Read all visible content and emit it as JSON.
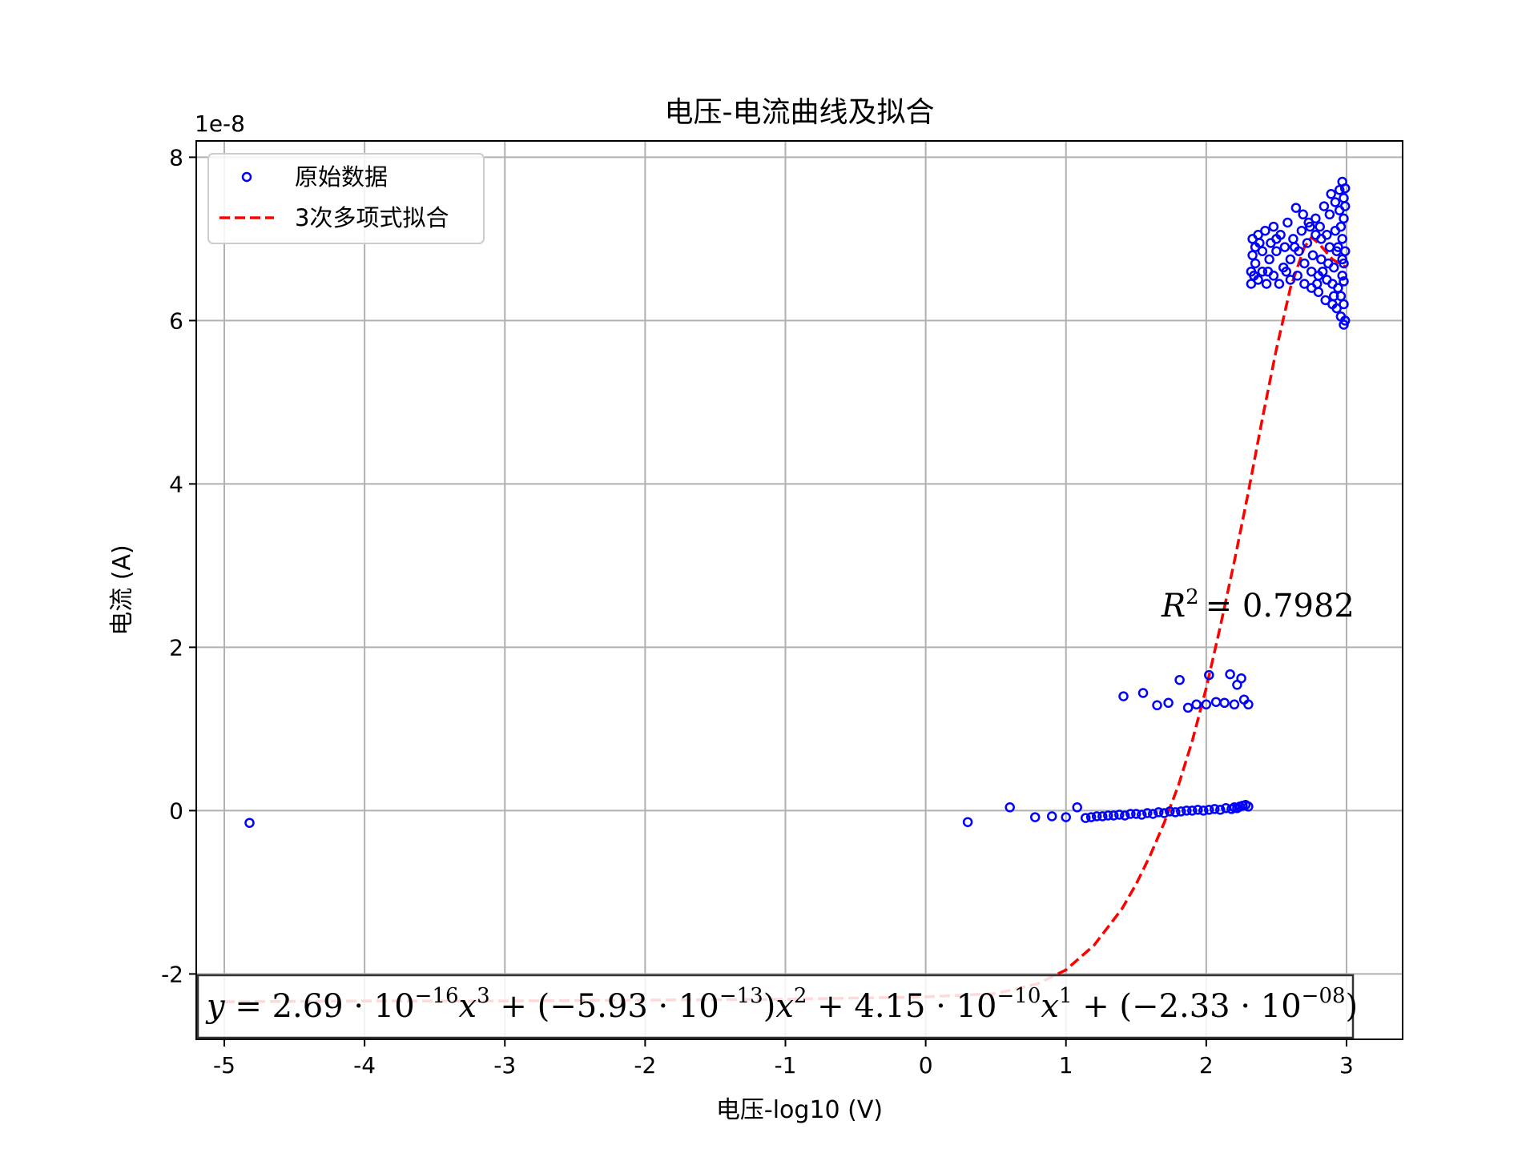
{
  "chart_data": {
    "type": "scatter",
    "title": "电压-电流曲线及拟合",
    "xlabel": "电压-log10 (V)",
    "ylabel": "电流 (A)",
    "y_offset_label": "1e-8",
    "xlim": [
      -5.2,
      3.4
    ],
    "ylim": [
      -2.8,
      8.2
    ],
    "x_ticks": [
      -5,
      -4,
      -3,
      -2,
      -1,
      0,
      1,
      2,
      3
    ],
    "x_tick_labels": [
      "-5",
      "-4",
      "-3",
      "-2",
      "-1",
      "0",
      "1",
      "2",
      "3"
    ],
    "y_ticks": [
      -2,
      0,
      2,
      4,
      6,
      8
    ],
    "y_tick_labels": [
      "-2",
      "0",
      "2",
      "4",
      "6",
      "8"
    ],
    "grid": true,
    "legend_position": "top-left",
    "series": [
      {
        "name": "原始数据",
        "kind": "scatter",
        "marker": "open-circle",
        "color": "#0000ff",
        "points": [
          [
            -4.82,
            -0.15
          ],
          [
            0.3,
            -0.14
          ],
          [
            0.6,
            0.04
          ],
          [
            0.78,
            -0.08
          ],
          [
            0.9,
            -0.07
          ],
          [
            1.0,
            -0.08
          ],
          [
            1.08,
            0.04
          ],
          [
            1.14,
            -0.09
          ],
          [
            1.18,
            -0.08
          ],
          [
            1.22,
            -0.07
          ],
          [
            1.26,
            -0.07
          ],
          [
            1.3,
            -0.06
          ],
          [
            1.34,
            -0.06
          ],
          [
            1.38,
            -0.05
          ],
          [
            1.42,
            -0.06
          ],
          [
            1.46,
            -0.04
          ],
          [
            1.5,
            -0.04
          ],
          [
            1.54,
            -0.05
          ],
          [
            1.58,
            -0.03
          ],
          [
            1.62,
            -0.04
          ],
          [
            1.66,
            -0.02
          ],
          [
            1.7,
            -0.03
          ],
          [
            1.74,
            -0.01
          ],
          [
            1.78,
            -0.02
          ],
          [
            1.82,
            -0.01
          ],
          [
            1.86,
            0.0
          ],
          [
            1.9,
            0.0
          ],
          [
            1.94,
            0.01
          ],
          [
            1.98,
            0.0
          ],
          [
            2.02,
            0.01
          ],
          [
            2.06,
            0.02
          ],
          [
            2.1,
            0.01
          ],
          [
            2.14,
            0.03
          ],
          [
            2.18,
            0.02
          ],
          [
            2.2,
            0.04
          ],
          [
            2.22,
            0.03
          ],
          [
            2.24,
            0.05
          ],
          [
            2.26,
            0.06
          ],
          [
            2.28,
            0.07
          ],
          [
            2.3,
            0.05
          ],
          [
            1.41,
            1.4
          ],
          [
            1.55,
            1.44
          ],
          [
            1.65,
            1.29
          ],
          [
            1.73,
            1.32
          ],
          [
            1.81,
            1.6
          ],
          [
            1.87,
            1.26
          ],
          [
            1.93,
            1.3
          ],
          [
            2.0,
            1.3
          ],
          [
            2.02,
            1.66
          ],
          [
            2.07,
            1.33
          ],
          [
            2.13,
            1.32
          ],
          [
            2.17,
            1.67
          ],
          [
            2.2,
            1.3
          ],
          [
            2.22,
            1.54
          ],
          [
            2.25,
            1.62
          ],
          [
            2.27,
            1.36
          ],
          [
            2.3,
            1.3
          ],
          [
            2.32,
            6.45
          ],
          [
            2.32,
            6.6
          ],
          [
            2.33,
            6.8
          ],
          [
            2.33,
            7.0
          ],
          [
            2.35,
            6.7
          ],
          [
            2.35,
            6.9
          ],
          [
            2.37,
            6.5
          ],
          [
            2.37,
            7.05
          ],
          [
            2.4,
            6.6
          ],
          [
            2.4,
            6.85
          ],
          [
            2.42,
            7.1
          ],
          [
            2.43,
            6.45
          ],
          [
            2.45,
            6.75
          ],
          [
            2.46,
            6.95
          ],
          [
            2.48,
            6.55
          ],
          [
            2.48,
            7.15
          ],
          [
            2.5,
            6.85
          ],
          [
            2.52,
            6.45
          ],
          [
            2.53,
            7.05
          ],
          [
            2.55,
            6.65
          ],
          [
            2.56,
            6.9
          ],
          [
            2.58,
            7.2
          ],
          [
            2.6,
            6.5
          ],
          [
            2.6,
            6.75
          ],
          [
            2.62,
            7.0
          ],
          [
            2.64,
            7.38
          ],
          [
            2.65,
            6.55
          ],
          [
            2.66,
            6.85
          ],
          [
            2.68,
            7.1
          ],
          [
            2.7,
            6.45
          ],
          [
            2.7,
            6.7
          ],
          [
            2.72,
            6.95
          ],
          [
            2.73,
            7.2
          ],
          [
            2.75,
            6.4
          ],
          [
            2.75,
            6.6
          ],
          [
            2.76,
            6.8
          ],
          [
            2.78,
            7.05
          ],
          [
            2.78,
            7.25
          ],
          [
            2.8,
            6.35
          ],
          [
            2.8,
            6.55
          ],
          [
            2.82,
            6.75
          ],
          [
            2.82,
            7.0
          ],
          [
            2.84,
            7.4
          ],
          [
            2.85,
            6.25
          ],
          [
            2.86,
            6.5
          ],
          [
            2.87,
            6.7
          ],
          [
            2.88,
            7.3
          ],
          [
            2.89,
            7.55
          ],
          [
            2.9,
            6.2
          ],
          [
            2.9,
            6.45
          ],
          [
            2.91,
            6.65
          ],
          [
            2.92,
            7.1
          ],
          [
            2.92,
            7.45
          ],
          [
            2.93,
            6.15
          ],
          [
            2.94,
            6.4
          ],
          [
            2.94,
            6.9
          ],
          [
            2.95,
            7.35
          ],
          [
            2.95,
            7.6
          ],
          [
            2.96,
            6.05
          ],
          [
            2.96,
            6.3
          ],
          [
            2.97,
            6.55
          ],
          [
            2.97,
            6.75
          ],
          [
            2.97,
            7.0
          ],
          [
            2.97,
            7.7
          ],
          [
            2.98,
            5.95
          ],
          [
            2.98,
            6.2
          ],
          [
            2.98,
            6.48
          ],
          [
            2.98,
            6.7
          ],
          [
            2.98,
            7.25
          ],
          [
            2.98,
            7.5
          ],
          [
            2.99,
            7.62
          ],
          [
            2.99,
            7.4
          ],
          [
            2.99,
            6.0
          ],
          [
            2.99,
            6.85
          ],
          [
            2.34,
            6.55
          ],
          [
            2.38,
            6.95
          ],
          [
            2.44,
            6.6
          ],
          [
            2.5,
            7.0
          ],
          [
            2.57,
            6.6
          ],
          [
            2.63,
            6.9
          ],
          [
            2.69,
            7.3
          ],
          [
            2.74,
            7.15
          ],
          [
            2.79,
            6.45
          ],
          [
            2.83,
            6.6
          ],
          [
            2.88,
            6.9
          ],
          [
            2.93,
            6.85
          ],
          [
            2.96,
            7.15
          ],
          [
            2.91,
            6.3
          ],
          [
            2.86,
            7.05
          ],
          [
            2.81,
            7.15
          ]
        ]
      },
      {
        "name": "3次多项式拟合",
        "kind": "line",
        "style": "dashed",
        "color": "#ff0000",
        "points": [
          [
            -5.0,
            -2.34
          ],
          [
            -4.0,
            -2.33
          ],
          [
            -3.0,
            -2.33
          ],
          [
            -2.0,
            -2.32
          ],
          [
            -1.0,
            -2.31
          ],
          [
            0.0,
            -2.28
          ],
          [
            0.5,
            -2.24
          ],
          [
            0.8,
            -2.12
          ],
          [
            1.0,
            -1.95
          ],
          [
            1.2,
            -1.65
          ],
          [
            1.4,
            -1.2
          ],
          [
            1.5,
            -0.9
          ],
          [
            1.6,
            -0.55
          ],
          [
            1.7,
            -0.15
          ],
          [
            1.8,
            0.3
          ],
          [
            1.9,
            0.85
          ],
          [
            2.0,
            1.5
          ],
          [
            2.1,
            2.25
          ],
          [
            2.2,
            3.05
          ],
          [
            2.3,
            3.9
          ],
          [
            2.4,
            4.8
          ],
          [
            2.5,
            5.65
          ],
          [
            2.6,
            6.4
          ],
          [
            2.7,
            6.9
          ],
          [
            2.75,
            7.02
          ],
          [
            2.8,
            6.95
          ],
          [
            2.9,
            6.75
          ],
          [
            3.0,
            6.65
          ]
        ]
      }
    ],
    "annotations": [
      {
        "kind": "r_squared",
        "text": "= 0.7982"
      }
    ],
    "equation": {
      "coefficients": [
        "2.69",
        "−5.93",
        "4.15",
        "−2.33"
      ],
      "exponents": [
        "−16",
        "−13",
        "−10",
        "−08"
      ]
    }
  }
}
